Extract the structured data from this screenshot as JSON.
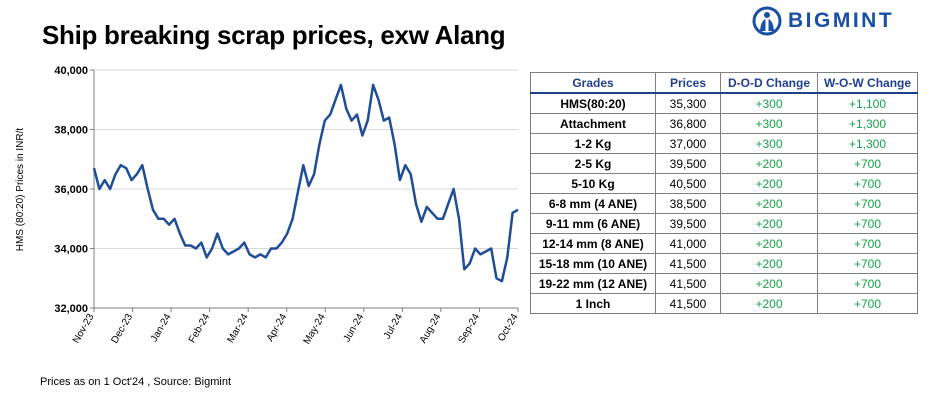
{
  "title": "Ship breaking scrap prices, exw Alang",
  "logo": {
    "text": "BIGMINT",
    "icon": "bigmint-logo-icon",
    "color": "#1a4fa3"
  },
  "chart_data": {
    "type": "line",
    "title": "",
    "ylabel": "HMS (80:20) Prices in INR/t",
    "ylim": [
      32000,
      40000
    ],
    "yticks": [
      32000,
      34000,
      36000,
      38000,
      40000
    ],
    "ytick_labels": [
      "32,000",
      "34,000",
      "36,000",
      "38,000",
      "40,000"
    ],
    "xtick_labels": [
      "Nov-23",
      "Dec-23",
      "Jan-24",
      "Feb-24",
      "Mar-24",
      "Apr-24",
      "May-24",
      "Jun-24",
      "Jul-24",
      "Aug-24",
      "Sep-24",
      "Oct-24"
    ],
    "line_color": "#1f4e96",
    "series": [
      {
        "values": [
          36700,
          36000,
          36300,
          36000,
          36500,
          36800,
          36700,
          36300,
          36500,
          36800,
          36000,
          35300,
          35000,
          35000,
          34800,
          35000,
          34500,
          34100,
          34100,
          34000,
          34200,
          33700,
          34000,
          34500,
          34000,
          33800,
          33900,
          34000,
          34200,
          33800,
          33700,
          33800,
          33700,
          34000,
          34000,
          34200,
          34500,
          35000,
          35900,
          36800,
          36100,
          36500,
          37500,
          38300,
          38500,
          39000,
          39500,
          38700,
          38300,
          38500,
          37800,
          38300,
          39500,
          39000,
          38300,
          38400,
          37500,
          36300,
          36800,
          36500,
          35500,
          34900,
          35400,
          35200,
          35000,
          35000,
          35500,
          36000,
          35000,
          33300,
          33500,
          34000,
          33800,
          33900,
          34000,
          33000,
          32900,
          33700,
          35200,
          35300
        ]
      }
    ]
  },
  "table": {
    "headers": [
      "Grades",
      "Prices",
      "D-O-D Change",
      "W-O-W Change"
    ],
    "rows": [
      [
        "HMS(80:20)",
        "35,300",
        "+300",
        "+1,100"
      ],
      [
        "Attachment",
        "36,800",
        "+300",
        "+1,300"
      ],
      [
        "1-2 Kg",
        "37,000",
        "+300",
        "+1,300"
      ],
      [
        "2-5 Kg",
        "39,500",
        "+200",
        "+700"
      ],
      [
        "5-10 Kg",
        "40,500",
        "+200",
        "+700"
      ],
      [
        "6-8 mm (4 ANE)",
        "38,500",
        "+200",
        "+700"
      ],
      [
        "9-11 mm (6 ANE)",
        "39,500",
        "+200",
        "+700"
      ],
      [
        "12-14 mm (8 ANE)",
        "41,000",
        "+200",
        "+700"
      ],
      [
        "15-18 mm (10 ANE)",
        "41,500",
        "+200",
        "+700"
      ],
      [
        "19-22 mm (12 ANE)",
        "41,500",
        "+200",
        "+700"
      ],
      [
        "1 Inch",
        "41,500",
        "+200",
        "+700"
      ]
    ]
  },
  "footer": "Prices as on 1 Oct'24 , Source: Bigmint",
  "colors": {
    "header_text": "#1f3f8f",
    "change_text": "#14a34a",
    "border": "#7f7f7f"
  }
}
